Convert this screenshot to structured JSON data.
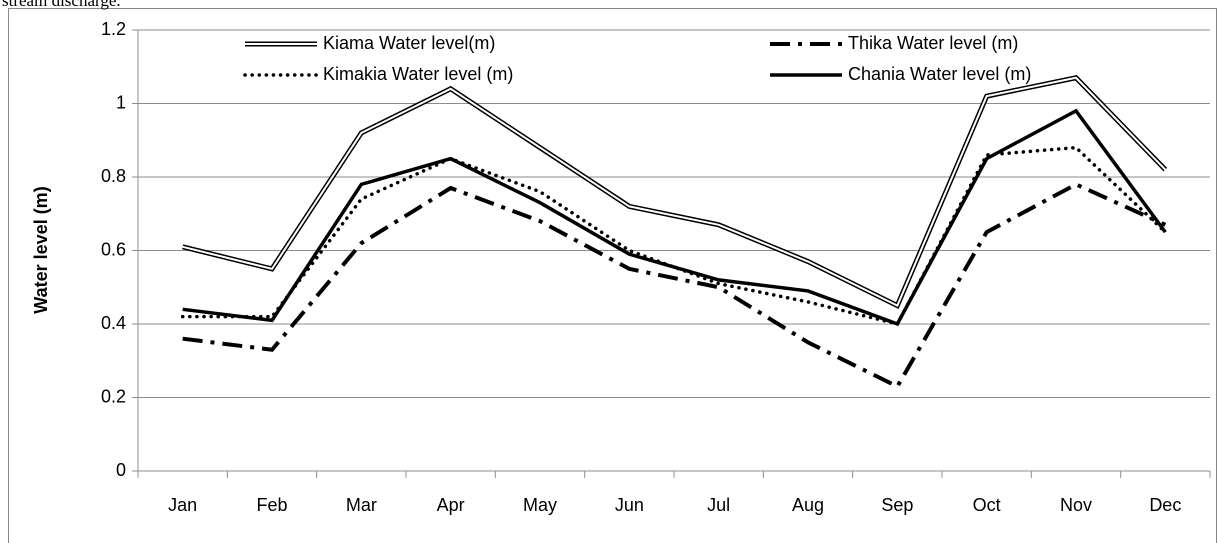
{
  "caption": "stream discharge.",
  "chart_data": {
    "type": "line",
    "y_label": "Water level (m)",
    "categories": [
      "Jan",
      "Feb",
      "Mar",
      "Apr",
      "May",
      "Jun",
      "Jul",
      "Aug",
      "Sep",
      "Oct",
      "Nov",
      "Dec"
    ],
    "series": [
      {
        "name": "Kiama Water level(m)",
        "color": "#000000",
        "style": "double",
        "values": [
          0.61,
          0.55,
          0.92,
          1.04,
          0.88,
          0.72,
          0.67,
          0.57,
          0.45,
          1.02,
          1.07,
          0.82
        ]
      },
      {
        "name": "Thika Water level (m)",
        "color": "#000000",
        "style": "dashdot",
        "values": [
          0.36,
          0.33,
          0.62,
          0.77,
          0.68,
          0.55,
          0.5,
          0.35,
          0.23,
          0.65,
          0.78,
          0.67
        ]
      },
      {
        "name": "Kimakia Water level (m)",
        "color": "#000000",
        "style": "dotted",
        "values": [
          0.42,
          0.42,
          0.74,
          0.85,
          0.76,
          0.6,
          0.51,
          0.46,
          0.4,
          0.86,
          0.88,
          0.65
        ]
      },
      {
        "name": "Chania Water level (m)",
        "color": "#000000",
        "style": "solid",
        "values": [
          0.44,
          0.41,
          0.78,
          0.85,
          0.73,
          0.59,
          0.52,
          0.49,
          0.4,
          0.85,
          0.98,
          0.65
        ]
      }
    ],
    "ylim": [
      0,
      1.2
    ],
    "yticks": [
      0,
      0.2,
      0.4,
      0.6,
      0.8,
      1,
      1.2
    ],
    "grid": true,
    "legend": "top"
  }
}
